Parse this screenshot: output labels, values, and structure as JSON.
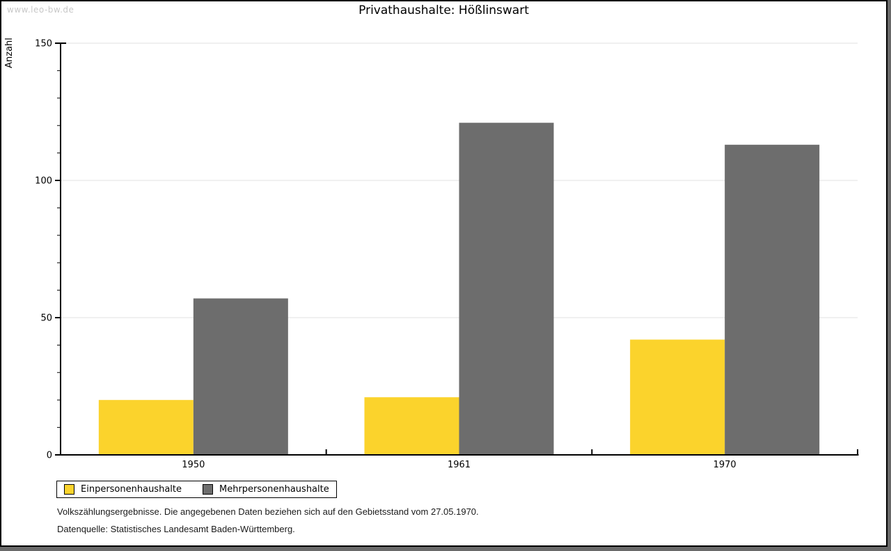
{
  "page": {
    "watermark": "www.leo-bw.de"
  },
  "chart_data": {
    "type": "bar",
    "title": "Privathaushalte: Hößlinswart",
    "ylabel": "Anzahl",
    "xlabel": "",
    "categories": [
      "1950",
      "1961",
      "1970"
    ],
    "series": [
      {
        "name": "Einpersonenhaushalte",
        "color": "#FBD32C",
        "values": [
          20,
          21,
          42
        ]
      },
      {
        "name": "Mehrpersonenhaushalte",
        "color": "#6D6D6D",
        "values": [
          57,
          121,
          113
        ]
      }
    ],
    "ylim": [
      0,
      150
    ],
    "y_major_ticks": [
      0,
      50,
      100,
      150
    ],
    "y_minor_step": 10,
    "grid": true,
    "gridline_color": "#E1E1E1",
    "axis_color": "#000000",
    "legend_position": "bottom-left"
  },
  "footnotes": [
    "Volkszählungsergebnisse. Die angegebenen Daten beziehen sich auf den Gebietsstand vom 27.05.1970.",
    "Datenquelle: Statistisches Landesamt Baden-Württemberg."
  ]
}
